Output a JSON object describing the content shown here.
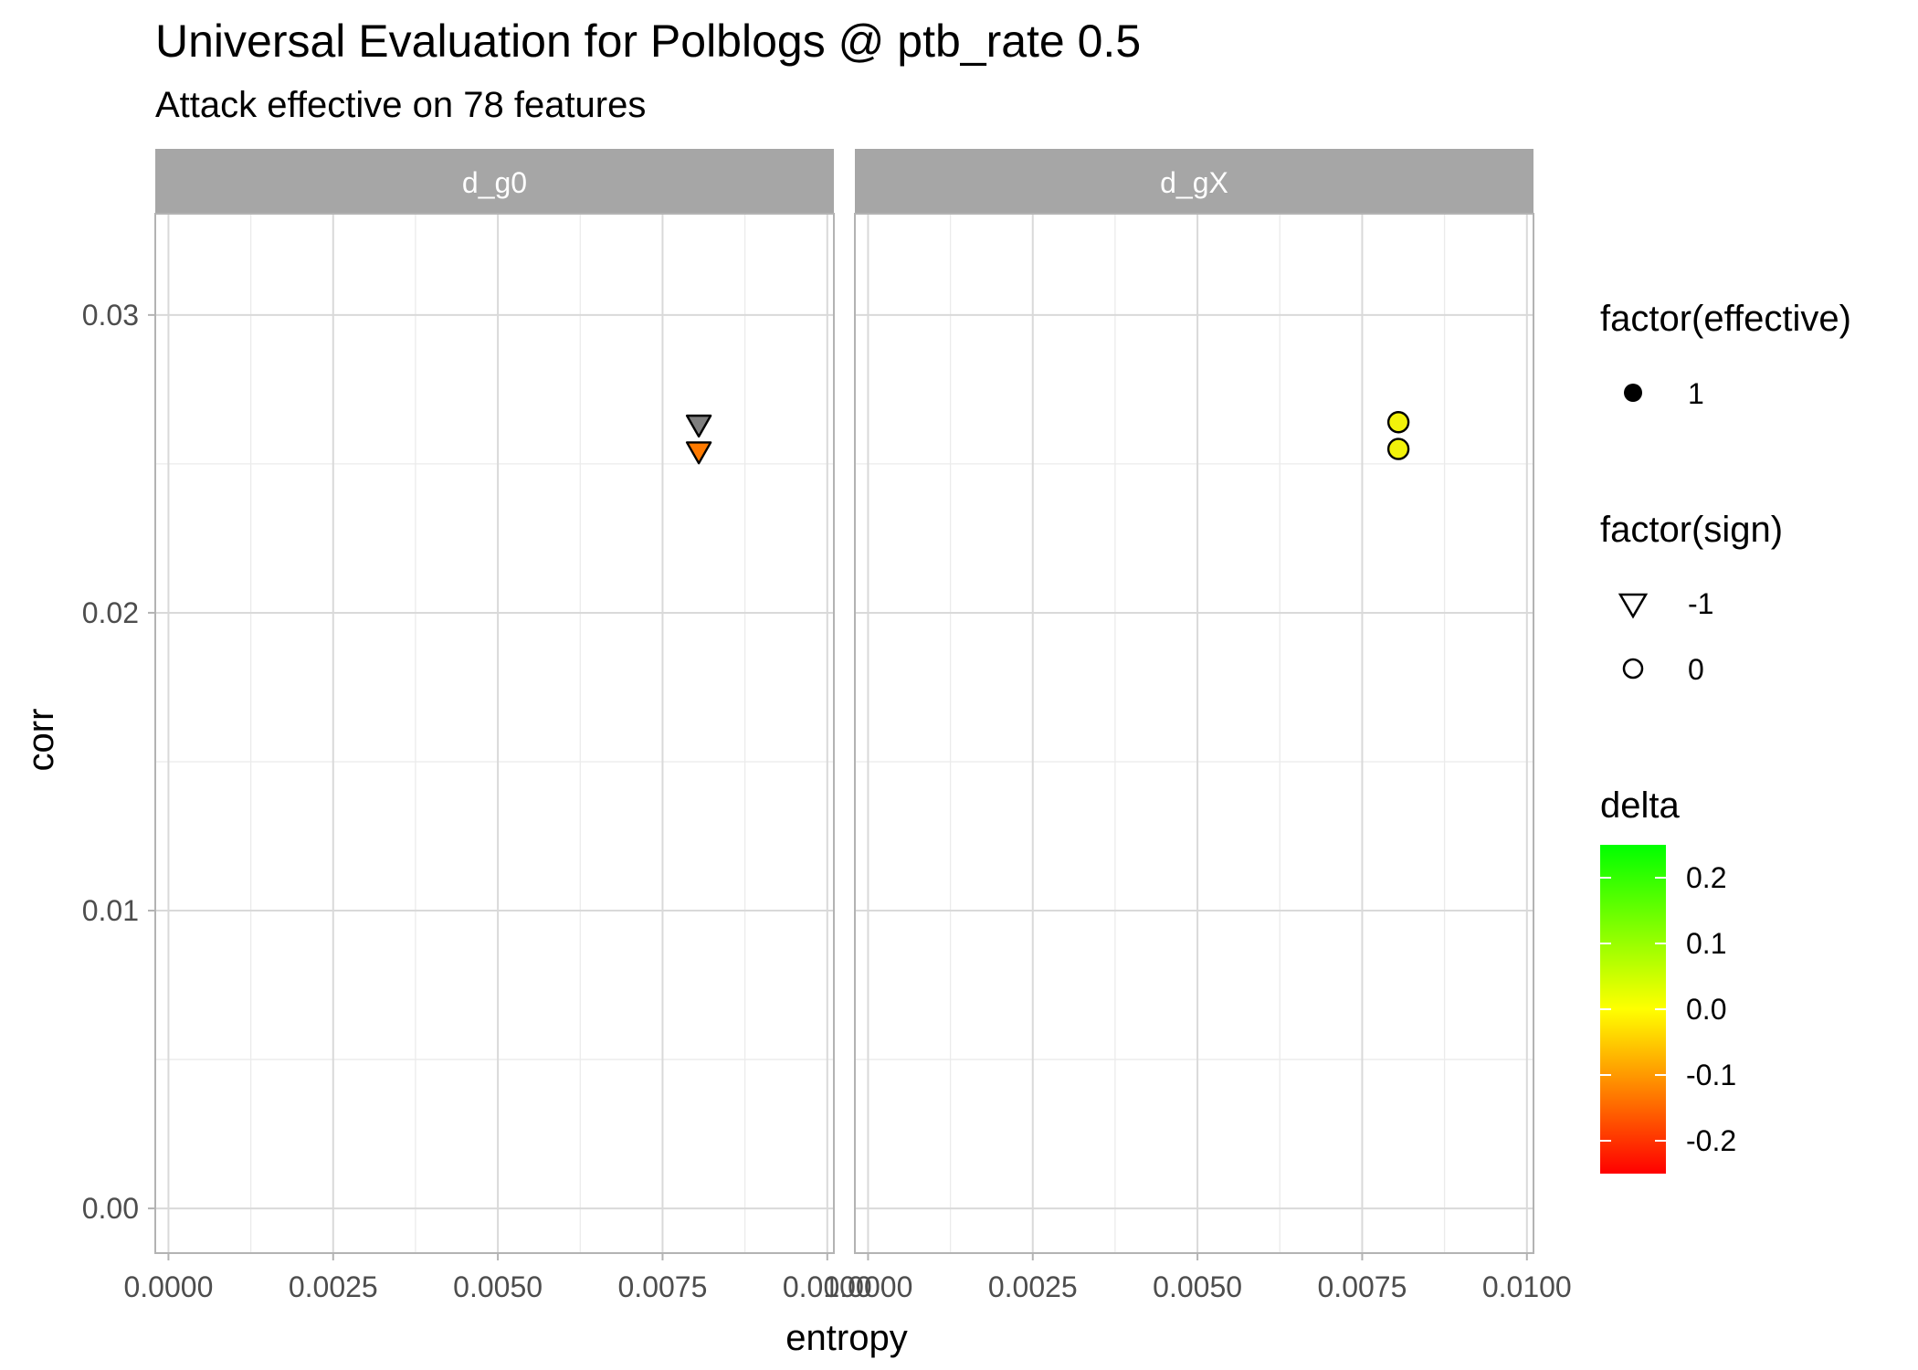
{
  "chart_data": {
    "type": "scatter",
    "title": "Universal Evaluation for Polblogs @ ptb_rate 0.5",
    "subtitle": "Attack effective on 78 features",
    "xlabel": "entropy",
    "ylabel": "corr",
    "xlim": [
      -0.0002,
      0.0101
    ],
    "ylim": [
      -0.0015,
      0.0334
    ],
    "x_ticks": [
      0.0,
      0.0025,
      0.005,
      0.0075,
      0.01
    ],
    "x_tick_labels": [
      "0.0000",
      "0.0025",
      "0.0050",
      "0.0075",
      "0.0100"
    ],
    "y_ticks": [
      0.0,
      0.01,
      0.02,
      0.03
    ],
    "y_tick_labels": [
      "0.00",
      "0.01",
      "0.02",
      "0.03"
    ],
    "grid": true,
    "facets": [
      {
        "label": "d_g0",
        "points": [
          {
            "x": 0.00805,
            "y": 0.0263,
            "sign": -1,
            "effective": 1,
            "delta": null,
            "color": "#7f7f7f"
          },
          {
            "x": 0.00805,
            "y": 0.0254,
            "sign": -1,
            "effective": 1,
            "delta": -0.12,
            "color": "#ff7a00"
          }
        ]
      },
      {
        "label": "d_gX",
        "points": [
          {
            "x": 0.00805,
            "y": 0.0264,
            "sign": 0,
            "effective": 1,
            "delta": 0.01,
            "color": "#f2f20a"
          },
          {
            "x": 0.00805,
            "y": 0.0255,
            "sign": 0,
            "effective": 1,
            "delta": 0.01,
            "color": "#f2f20a"
          }
        ]
      }
    ],
    "legend": {
      "placement": "right",
      "effective": {
        "title": "factor(effective)",
        "items": [
          "1"
        ]
      },
      "sign": {
        "title": "factor(sign)",
        "items": [
          {
            "label": "-1",
            "shape": "triangle-down"
          },
          {
            "label": "0",
            "shape": "circle"
          }
        ]
      },
      "delta": {
        "title": "delta",
        "range": [
          -0.25,
          0.25
        ],
        "ticks": [
          0.2,
          0.1,
          0.0,
          -0.1,
          -0.2
        ],
        "tick_labels": [
          "0.2",
          "0.1",
          "0.0",
          "-0.1",
          "-0.2"
        ],
        "colors": [
          "#ff0000",
          "#ffff00",
          "#00ff00"
        ]
      }
    }
  }
}
